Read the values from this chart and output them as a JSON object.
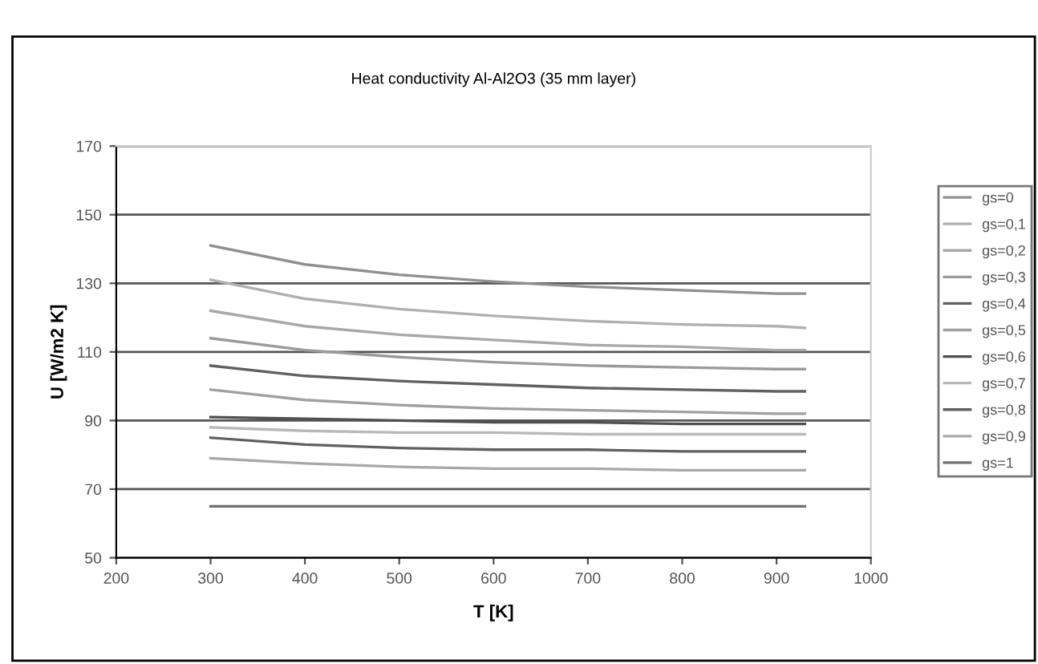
{
  "chart_data": {
    "type": "line",
    "title": "Heat conductivity Al-Al2O3 (35 mm layer)",
    "xlabel": "T [K]",
    "ylabel": "U [W/m2 K]",
    "x": [
      300,
      400,
      500,
      600,
      700,
      800,
      900,
      930
    ],
    "series": [
      {
        "name": "gs=0",
        "color": "#909090",
        "values": [
          141,
          135.5,
          132.5,
          130.5,
          129,
          128,
          127,
          127
        ]
      },
      {
        "name": "gs=0,1",
        "color": "#b0b0b0",
        "values": [
          131,
          125.5,
          122.5,
          120.5,
          119,
          118,
          117.5,
          117
        ]
      },
      {
        "name": "gs=0,2",
        "color": "#a8a8a8",
        "values": [
          122,
          117.5,
          115,
          113.5,
          112,
          111.5,
          110.5,
          110.5
        ]
      },
      {
        "name": "gs=0,3",
        "color": "#9a9a9a",
        "values": [
          114,
          110.5,
          108.5,
          107,
          106,
          105.5,
          105,
          105
        ]
      },
      {
        "name": "gs=0,4",
        "color": "#606060",
        "values": [
          106,
          103,
          101.5,
          100.5,
          99.5,
          99,
          98.5,
          98.5
        ]
      },
      {
        "name": "gs=0,5",
        "color": "#a0a0a0",
        "values": [
          99,
          96,
          94.5,
          93.5,
          93,
          92.5,
          92,
          92
        ]
      },
      {
        "name": "gs=0,6",
        "color": "#505050",
        "values": [
          91,
          90.5,
          90,
          89.5,
          89.5,
          89,
          89,
          89
        ]
      },
      {
        "name": "gs=0,7",
        "color": "#b8b8b8",
        "values": [
          88,
          87,
          86.5,
          86.5,
          86,
          86,
          86,
          86
        ]
      },
      {
        "name": "gs=0,8",
        "color": "#606060",
        "values": [
          85,
          83,
          82,
          81.5,
          81.5,
          81,
          81,
          81
        ]
      },
      {
        "name": "gs=0,9",
        "color": "#a8a8a8",
        "values": [
          79,
          77.5,
          76.5,
          76,
          76,
          75.5,
          75.5,
          75.5
        ]
      },
      {
        "name": "gs=1",
        "color": "#707070",
        "values": [
          65,
          65,
          65,
          65,
          65,
          65,
          65,
          65
        ]
      }
    ],
    "xlim": [
      200,
      1000
    ],
    "xticks": [
      200,
      300,
      400,
      500,
      600,
      700,
      800,
      900,
      1000
    ],
    "ylim": [
      50,
      170
    ],
    "yticks": [
      50,
      70,
      90,
      110,
      130,
      150,
      170
    ],
    "grid": "y",
    "legend": "right",
    "marker": "none",
    "line_style": "solid"
  }
}
